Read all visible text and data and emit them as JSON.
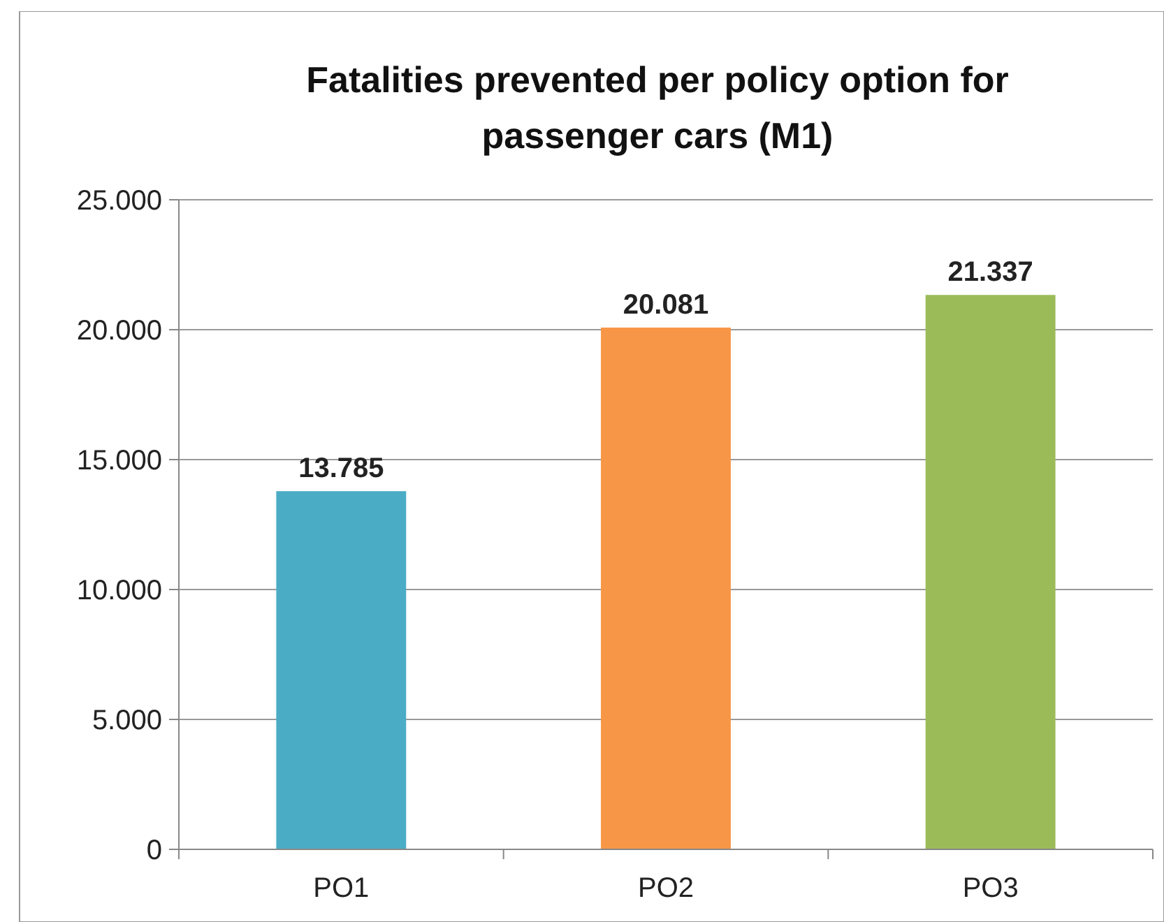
{
  "chart_data": {
    "type": "bar",
    "title": "Fatalities prevented per policy option for passenger cars (M1)",
    "categories": [
      "PO1",
      "PO2",
      "PO3"
    ],
    "values": [
      13785,
      20081,
      21337
    ],
    "colors": [
      "#4bacc6",
      "#f79646",
      "#9bbb59"
    ],
    "value_labels": [
      "13.785",
      "20.081",
      "21.337"
    ],
    "ylim": [
      0,
      25000
    ],
    "yticks": [
      {
        "value": 0,
        "label": "0"
      },
      {
        "value": 5000,
        "label": "5.000"
      },
      {
        "value": 10000,
        "label": "10.000"
      },
      {
        "value": 15000,
        "label": "15.000"
      },
      {
        "value": 20000,
        "label": "20.000"
      },
      {
        "value": 25000,
        "label": "25.000"
      }
    ],
    "grid": "y"
  }
}
